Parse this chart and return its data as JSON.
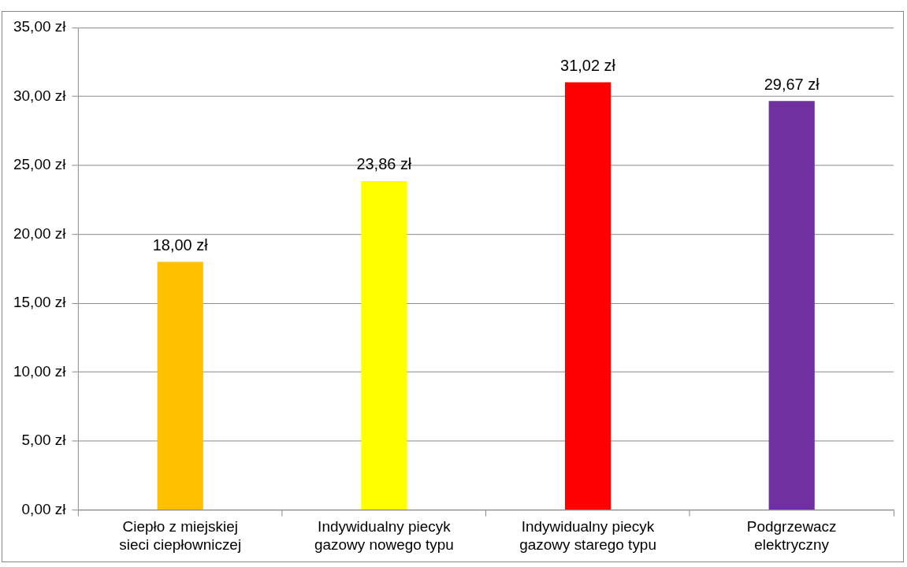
{
  "chart_data": {
    "type": "bar",
    "categories": [
      "Ciepło z miejskiej sieci ciepłowniczej",
      "Indywidualny piecyk gazowy nowego typu",
      "Indywidualny piecyk gazowy starego typu",
      "Podgrzewacz elektryczny"
    ],
    "values": [
      18.0,
      23.86,
      31.02,
      29.67
    ],
    "colors": [
      "#ffc000",
      "#ffff00",
      "#ff0000",
      "#7030a0"
    ],
    "value_labels": [
      "18,00 zł",
      "23,86 zł",
      "31,02 zł",
      "29,67 zł"
    ],
    "ylim": [
      0,
      35
    ],
    "yticks": [
      {
        "value": 0,
        "label": "0,00 zł"
      },
      {
        "value": 5,
        "label": "5,00 zł"
      },
      {
        "value": 10,
        "label": "10,00 zł"
      },
      {
        "value": 15,
        "label": "15,00 zł"
      },
      {
        "value": 20,
        "label": "20,00 zł"
      },
      {
        "value": 25,
        "label": "25,00 zł"
      },
      {
        "value": 30,
        "label": "30,00 zł"
      },
      {
        "value": 35,
        "label": "35,00 zł"
      }
    ],
    "grid": "y",
    "legend": false
  }
}
